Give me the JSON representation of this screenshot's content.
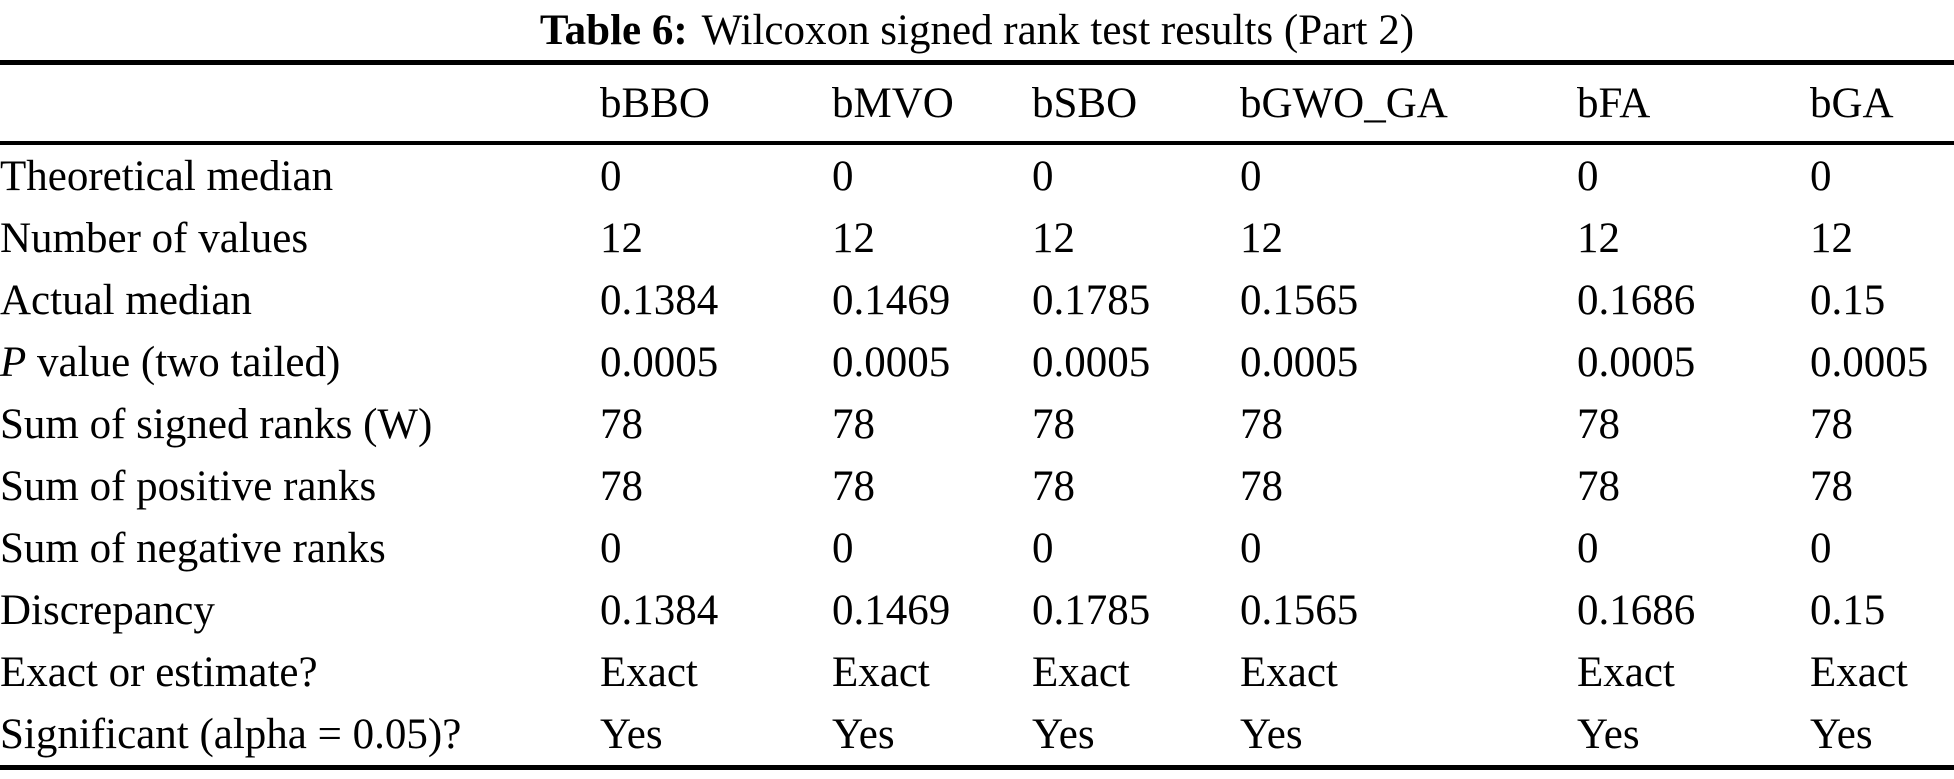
{
  "caption": {
    "label": "Table 6:",
    "text": "Wilcoxon signed rank test results (Part 2)"
  },
  "table": {
    "columns": [
      "bBBO",
      "bMVO",
      "bSBO",
      "bGWO_GA",
      "bFA",
      "bGA"
    ],
    "rows": [
      {
        "label": "Theoretical median",
        "values": [
          "0",
          "0",
          "0",
          "0",
          "0",
          "0"
        ]
      },
      {
        "label": "Number of values",
        "values": [
          "12",
          "12",
          "12",
          "12",
          "12",
          "12"
        ]
      },
      {
        "label": "Actual median",
        "values": [
          "0.1384",
          "0.1469",
          "0.1785",
          "0.1565",
          "0.1686",
          "0.15"
        ]
      },
      {
        "label": "P value (two tailed)",
        "italic_first": true,
        "values": [
          "0.0005",
          "0.0005",
          "0.0005",
          "0.0005",
          "0.0005",
          "0.0005"
        ]
      },
      {
        "label": "Sum of signed ranks (W)",
        "values": [
          "78",
          "78",
          "78",
          "78",
          "78",
          "78"
        ]
      },
      {
        "label": "Sum of positive ranks",
        "values": [
          "78",
          "78",
          "78",
          "78",
          "78",
          "78"
        ]
      },
      {
        "label": "Sum of negative ranks",
        "values": [
          "0",
          "0",
          "0",
          "0",
          "0",
          "0"
        ]
      },
      {
        "label": "Discrepancy",
        "values": [
          "0.1384",
          "0.1469",
          "0.1785",
          "0.1565",
          "0.1686",
          "0.15"
        ]
      },
      {
        "label": "Exact or estimate?",
        "values": [
          "Exact",
          "Exact",
          "Exact",
          "Exact",
          "Exact",
          "Exact"
        ]
      },
      {
        "label": "Significant (alpha = 0.05)?",
        "values": [
          "Yes",
          "Yes",
          "Yes",
          "Yes",
          "Yes",
          "Yes"
        ]
      }
    ]
  }
}
